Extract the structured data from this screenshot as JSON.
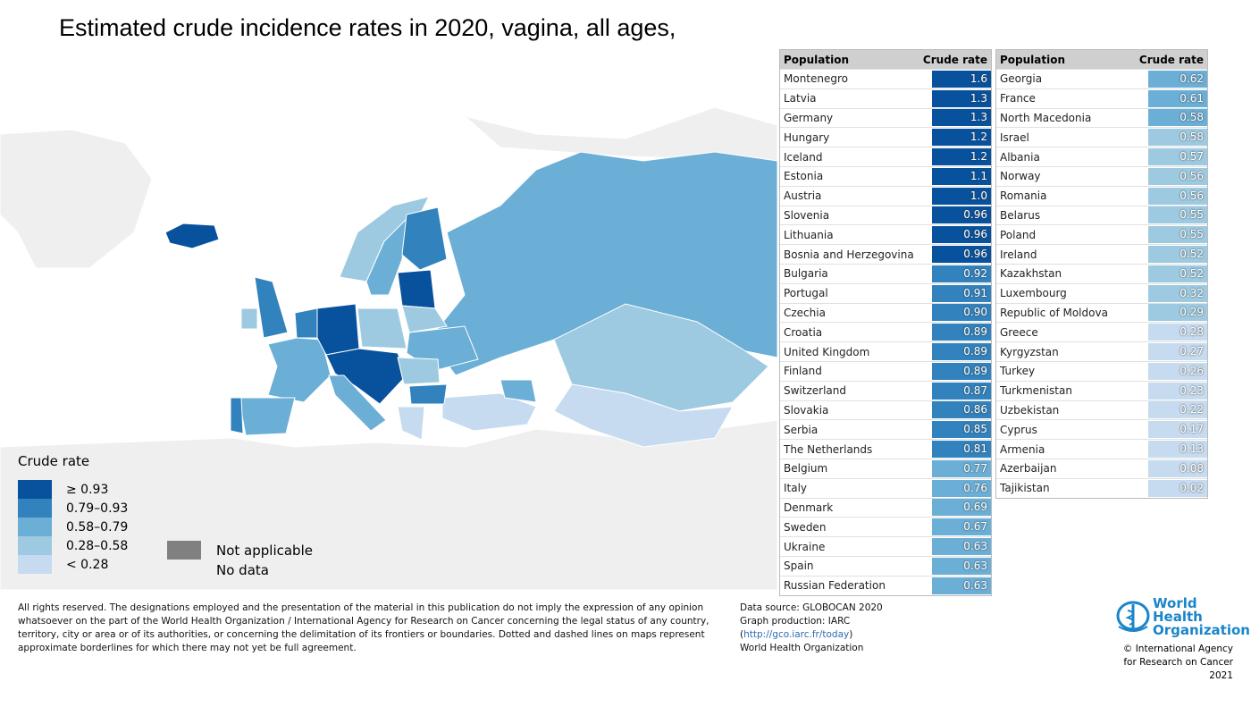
{
  "title": "Estimated crude incidence rates in 2020, vagina, all ages,",
  "colors": {
    "c1": "#08519c",
    "c2": "#3182bd",
    "c3": "#6baed6",
    "c4": "#9ecae1",
    "c5": "#c6dbef",
    "na": "#808080",
    "nodata": "#efefef"
  },
  "table_headers": {
    "population": "Population",
    "rate": "Crude rate"
  },
  "table_left": [
    [
      "Montenegro",
      "1.6",
      1
    ],
    [
      "Latvia",
      "1.3",
      1
    ],
    [
      "Germany",
      "1.3",
      1
    ],
    [
      "Hungary",
      "1.2",
      1
    ],
    [
      "Iceland",
      "1.2",
      1
    ],
    [
      "Estonia",
      "1.1",
      1
    ],
    [
      "Austria",
      "1.0",
      1
    ],
    [
      "Slovenia",
      "0.96",
      1
    ],
    [
      "Lithuania",
      "0.96",
      1
    ],
    [
      "Bosnia and Herzegovina",
      "0.96",
      1
    ],
    [
      "Bulgaria",
      "0.92",
      2
    ],
    [
      "Portugal",
      "0.91",
      2
    ],
    [
      "Czechia",
      "0.90",
      2
    ],
    [
      "Croatia",
      "0.89",
      2
    ],
    [
      "United Kingdom",
      "0.89",
      2
    ],
    [
      "Finland",
      "0.89",
      2
    ],
    [
      "Switzerland",
      "0.87",
      2
    ],
    [
      "Slovakia",
      "0.86",
      2
    ],
    [
      "Serbia",
      "0.85",
      2
    ],
    [
      "The Netherlands",
      "0.81",
      2
    ],
    [
      "Belgium",
      "0.77",
      3
    ],
    [
      "Italy",
      "0.76",
      3
    ],
    [
      "Denmark",
      "0.69",
      3
    ],
    [
      "Sweden",
      "0.67",
      3
    ],
    [
      "Ukraine",
      "0.63",
      3
    ],
    [
      "Spain",
      "0.63",
      3
    ],
    [
      "Russian Federation",
      "0.63",
      3
    ]
  ],
  "table_right": [
    [
      "Georgia",
      "0.62",
      3
    ],
    [
      "France",
      "0.61",
      3
    ],
    [
      "North Macedonia",
      "0.58",
      3
    ],
    [
      "Israel",
      "0.58",
      4
    ],
    [
      "Albania",
      "0.57",
      4
    ],
    [
      "Norway",
      "0.56",
      4
    ],
    [
      "Romania",
      "0.56",
      4
    ],
    [
      "Belarus",
      "0.55",
      4
    ],
    [
      "Poland",
      "0.55",
      4
    ],
    [
      "Ireland",
      "0.52",
      4
    ],
    [
      "Kazakhstan",
      "0.52",
      4
    ],
    [
      "Luxembourg",
      "0.32",
      4
    ],
    [
      "Republic of Moldova",
      "0.29",
      4
    ],
    [
      "Greece",
      "0.28",
      5
    ],
    [
      "Kyrgyzstan",
      "0.27",
      5
    ],
    [
      "Turkey",
      "0.26",
      5
    ],
    [
      "Turkmenistan",
      "0.23",
      5
    ],
    [
      "Uzbekistan",
      "0.22",
      5
    ],
    [
      "Cyprus",
      "0.17",
      5
    ],
    [
      "Armenia",
      "0.13",
      5
    ],
    [
      "Azerbaijan",
      "0.08",
      5
    ],
    [
      "Tajikistan",
      "0.02",
      5
    ]
  ],
  "legend": {
    "title": "Crude rate",
    "items": [
      "≥ 0.93",
      "0.79–0.93",
      "0.58–0.79",
      "0.28–0.58",
      "< 0.28"
    ],
    "not_applicable": "Not applicable",
    "no_data": "No data"
  },
  "disclaimer": "All rights reserved. The designations employed and the presentation of the material in this publication do not imply the expression of any opinion whatsoever on the part of the World Health Organization / International Agency for Research on Cancer concerning the legal status of any country, territory, city or area or of its authorities, or concerning the delimitation of its frontiers or boundaries. Dotted and dashed lines on maps represent approximate borderlines for which there may not yet be full agreement.",
  "source": {
    "line1": "Data source: GLOBOCAN 2020",
    "line2": "Graph production: IARC",
    "link": "http://gco.iarc.fr/today",
    "line4": "World Health Organization"
  },
  "who": {
    "logo_text": "World Health Organization",
    "copyright": "© International Agency for Research on Cancer 2021"
  }
}
